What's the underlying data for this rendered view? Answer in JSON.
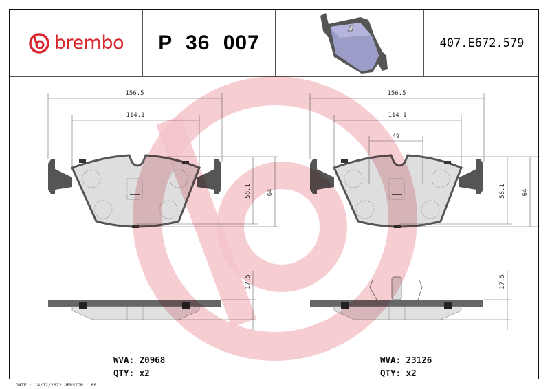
{
  "header": {
    "brand": "brembo",
    "part_number": "P 36 007",
    "reference": "407.E672.579",
    "brand_color": "#d8262e"
  },
  "drawings": [
    {
      "width_overall": "156.5",
      "width_friction": "114.1",
      "height_overall": "64",
      "height_friction": "58.1",
      "thickness": "17.5",
      "wva_label": "WVA:",
      "wva": "20968",
      "qty_label": "QTY:",
      "qty": "x2"
    },
    {
      "width_overall": "156.5",
      "width_friction": "114.1",
      "sensor_spacing": "49",
      "height_overall": "64",
      "height_friction": "58.1",
      "thickness": "17.5",
      "wva_label": "WVA:",
      "wva": "23126",
      "qty_label": "QTY:",
      "qty": "x2"
    }
  ],
  "footer": {
    "text": "DATE : 14/12/2022 VERSION : 00"
  },
  "watermark": {
    "color": "#f4c6ca",
    "icon": "brembo-logo-icon"
  }
}
